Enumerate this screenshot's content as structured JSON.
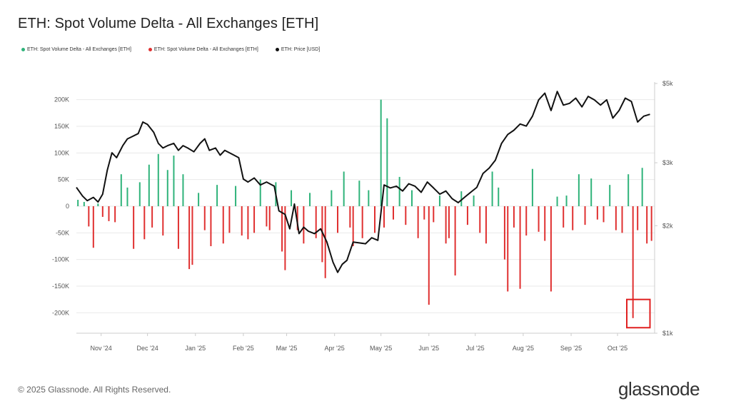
{
  "title": "ETH: Spot Volume Delta - All Exchanges [ETH]",
  "legend": [
    {
      "label": "ETH: Spot Volume Delta - All Exchanges [ETH]",
      "color": "#2fb37a"
    },
    {
      "label": "ETH: Spot Volume Delta - All Exchanges [ETH]",
      "color": "#e03030"
    },
    {
      "label": "ETH: Price [USD]",
      "color": "#111111"
    }
  ],
  "footer": {
    "copyright": "© 2025 Glassnode. All Rights Reserved.",
    "brand": "glassnode"
  },
  "colors": {
    "positive": "#2fb37a",
    "negative": "#e03030",
    "price": "#111111",
    "highlight": "#e02020",
    "grid": "#e9e9e9",
    "axis": "#cccccc"
  },
  "chart_data": {
    "type": "bar",
    "title": "ETH: Spot Volume Delta - All Exchanges [ETH]",
    "left_axis": {
      "ticks": [
        200000,
        150000,
        100000,
        50000,
        0,
        -50000,
        -100000,
        -150000,
        -200000
      ],
      "tick_labels": [
        "200K",
        "150K",
        "100K",
        "50K",
        "0",
        "-50K",
        "-100K",
        "-150K",
        "-200K"
      ],
      "range": [
        -235000,
        230000
      ]
    },
    "right_axis": {
      "scale": "log",
      "ticks": [
        5000,
        3000,
        2000,
        1000
      ],
      "tick_labels": [
        "$5k",
        "$3k",
        "$2k",
        "$1k"
      ],
      "range": [
        1000,
        5000
      ]
    },
    "x_axis": {
      "labels": [
        "Nov '24",
        "Dec '24",
        "Jan '25",
        "Feb '25",
        "Mar '25",
        "Apr '25",
        "May '25",
        "Jun '25",
        "Jul '25",
        "Aug '25",
        "Sep '25",
        "Oct '25"
      ],
      "label_days": [
        5,
        35,
        66,
        97,
        125,
        156,
        186,
        217,
        247,
        278,
        309,
        339
      ],
      "day_range": [
        -11,
        363
      ]
    },
    "series_volume_delta": {
      "name": "ETH: Spot Volume Delta - All Exchanges [ETH]",
      "unit": "ETH",
      "approx_bar_count": 187,
      "points": [
        [
          -10,
          12000
        ],
        [
          -6,
          8000
        ],
        [
          -3,
          -38000
        ],
        [
          0,
          -78000
        ],
        [
          3,
          5000
        ],
        [
          6,
          -20000
        ],
        [
          10,
          -28000
        ],
        [
          14,
          -30000
        ],
        [
          18,
          60000
        ],
        [
          22,
          35000
        ],
        [
          26,
          -80000
        ],
        [
          30,
          45000
        ],
        [
          33,
          -62000
        ],
        [
          36,
          78000
        ],
        [
          38,
          -40000
        ],
        [
          42,
          98000
        ],
        [
          45,
          -55000
        ],
        [
          48,
          68000
        ],
        [
          52,
          95000
        ],
        [
          55,
          -80000
        ],
        [
          58,
          60000
        ],
        [
          62,
          -118000
        ],
        [
          64,
          -110000
        ],
        [
          68,
          25000
        ],
        [
          72,
          -45000
        ],
        [
          76,
          -75000
        ],
        [
          80,
          40000
        ],
        [
          84,
          -70000
        ],
        [
          88,
          -50000
        ],
        [
          92,
          38000
        ],
        [
          96,
          -55000
        ],
        [
          100,
          -62000
        ],
        [
          104,
          -50000
        ],
        [
          108,
          50000
        ],
        [
          112,
          -38000
        ],
        [
          114,
          -45000
        ],
        [
          118,
          45000
        ],
        [
          122,
          -85000
        ],
        [
          124,
          -120000
        ],
        [
          128,
          30000
        ],
        [
          132,
          -45000
        ],
        [
          136,
          -70000
        ],
        [
          140,
          25000
        ],
        [
          144,
          -60000
        ],
        [
          148,
          -105000
        ],
        [
          150,
          -135000
        ],
        [
          154,
          30000
        ],
        [
          158,
          -50000
        ],
        [
          162,
          65000
        ],
        [
          166,
          -40000
        ],
        [
          168,
          -75000
        ],
        [
          172,
          48000
        ],
        [
          174,
          -60000
        ],
        [
          178,
          30000
        ],
        [
          182,
          -50000
        ],
        [
          186,
          200000
        ],
        [
          188,
          -40000
        ],
        [
          190,
          165000
        ],
        [
          194,
          -25000
        ],
        [
          198,
          55000
        ],
        [
          202,
          -35000
        ],
        [
          206,
          30000
        ],
        [
          210,
          -60000
        ],
        [
          214,
          -25000
        ],
        [
          217,
          -185000
        ],
        [
          220,
          -30000
        ],
        [
          224,
          20000
        ],
        [
          228,
          -70000
        ],
        [
          230,
          -60000
        ],
        [
          234,
          -130000
        ],
        [
          238,
          28000
        ],
        [
          242,
          -35000
        ],
        [
          246,
          20000
        ],
        [
          250,
          -50000
        ],
        [
          254,
          -70000
        ],
        [
          258,
          65000
        ],
        [
          262,
          35000
        ],
        [
          266,
          -100000
        ],
        [
          268,
          -160000
        ],
        [
          272,
          -40000
        ],
        [
          276,
          -155000
        ],
        [
          280,
          -55000
        ],
        [
          284,
          70000
        ],
        [
          288,
          -48000
        ],
        [
          292,
          -65000
        ],
        [
          296,
          -160000
        ],
        [
          300,
          18000
        ],
        [
          304,
          -40000
        ],
        [
          306,
          20000
        ],
        [
          310,
          -45000
        ],
        [
          314,
          60000
        ],
        [
          318,
          -35000
        ],
        [
          322,
          52000
        ],
        [
          326,
          -25000
        ],
        [
          330,
          -30000
        ],
        [
          334,
          40000
        ],
        [
          338,
          -45000
        ],
        [
          342,
          -50000
        ],
        [
          346,
          60000
        ],
        [
          349,
          -210000
        ],
        [
          352,
          -45000
        ],
        [
          355,
          72000
        ],
        [
          358,
          -70000
        ],
        [
          361,
          -65000
        ]
      ]
    },
    "series_price": {
      "name": "ETH: Price [USD]",
      "unit": "USD",
      "points": [
        [
          -11,
          2560
        ],
        [
          -7,
          2420
        ],
        [
          -4,
          2350
        ],
        [
          0,
          2400
        ],
        [
          3,
          2330
        ],
        [
          6,
          2450
        ],
        [
          9,
          2860
        ],
        [
          12,
          3200
        ],
        [
          15,
          3100
        ],
        [
          19,
          3350
        ],
        [
          22,
          3500
        ],
        [
          25,
          3550
        ],
        [
          29,
          3620
        ],
        [
          32,
          3900
        ],
        [
          35,
          3840
        ],
        [
          39,
          3650
        ],
        [
          42,
          3400
        ],
        [
          45,
          3300
        ],
        [
          48,
          3350
        ],
        [
          52,
          3400
        ],
        [
          55,
          3250
        ],
        [
          58,
          3350
        ],
        [
          61,
          3300
        ],
        [
          65,
          3220
        ],
        [
          69,
          3400
        ],
        [
          72,
          3500
        ],
        [
          75,
          3250
        ],
        [
          79,
          3300
        ],
        [
          82,
          3150
        ],
        [
          85,
          3250
        ],
        [
          88,
          3200
        ],
        [
          91,
          3150
        ],
        [
          94,
          3100
        ],
        [
          97,
          2700
        ],
        [
          100,
          2650
        ],
        [
          104,
          2720
        ],
        [
          108,
          2600
        ],
        [
          112,
          2650
        ],
        [
          117,
          2580
        ],
        [
          120,
          2200
        ],
        [
          124,
          2150
        ],
        [
          127,
          1960
        ],
        [
          130,
          2300
        ],
        [
          133,
          1900
        ],
        [
          136,
          1980
        ],
        [
          139,
          1930
        ],
        [
          143,
          1900
        ],
        [
          147,
          1960
        ],
        [
          151,
          1800
        ],
        [
          155,
          1580
        ],
        [
          158,
          1480
        ],
        [
          161,
          1560
        ],
        [
          164,
          1600
        ],
        [
          168,
          1800
        ],
        [
          172,
          1790
        ],
        [
          176,
          1780
        ],
        [
          180,
          1850
        ],
        [
          184,
          1820
        ],
        [
          188,
          2600
        ],
        [
          192,
          2550
        ],
        [
          196,
          2580
        ],
        [
          200,
          2500
        ],
        [
          204,
          2620
        ],
        [
          208,
          2580
        ],
        [
          212,
          2480
        ],
        [
          216,
          2650
        ],
        [
          220,
          2550
        ],
        [
          224,
          2450
        ],
        [
          228,
          2500
        ],
        [
          232,
          2380
        ],
        [
          236,
          2320
        ],
        [
          240,
          2400
        ],
        [
          244,
          2480
        ],
        [
          248,
          2560
        ],
        [
          252,
          2800
        ],
        [
          256,
          2900
        ],
        [
          260,
          3050
        ],
        [
          264,
          3400
        ],
        [
          268,
          3600
        ],
        [
          272,
          3700
        ],
        [
          276,
          3850
        ],
        [
          280,
          3800
        ],
        [
          284,
          4050
        ],
        [
          288,
          4500
        ],
        [
          292,
          4700
        ],
        [
          296,
          4200
        ],
        [
          300,
          4750
        ],
        [
          304,
          4350
        ],
        [
          308,
          4400
        ],
        [
          312,
          4550
        ],
        [
          316,
          4300
        ],
        [
          320,
          4600
        ],
        [
          324,
          4500
        ],
        [
          328,
          4350
        ],
        [
          332,
          4500
        ],
        [
          336,
          4000
        ],
        [
          340,
          4200
        ],
        [
          344,
          4550
        ],
        [
          348,
          4450
        ],
        [
          352,
          3900
        ],
        [
          356,
          4050
        ],
        [
          360,
          4100
        ]
      ]
    },
    "highlight_box": {
      "day_from": 345,
      "day_to": 360,
      "value_from": -175000,
      "value_to": -228000
    }
  }
}
